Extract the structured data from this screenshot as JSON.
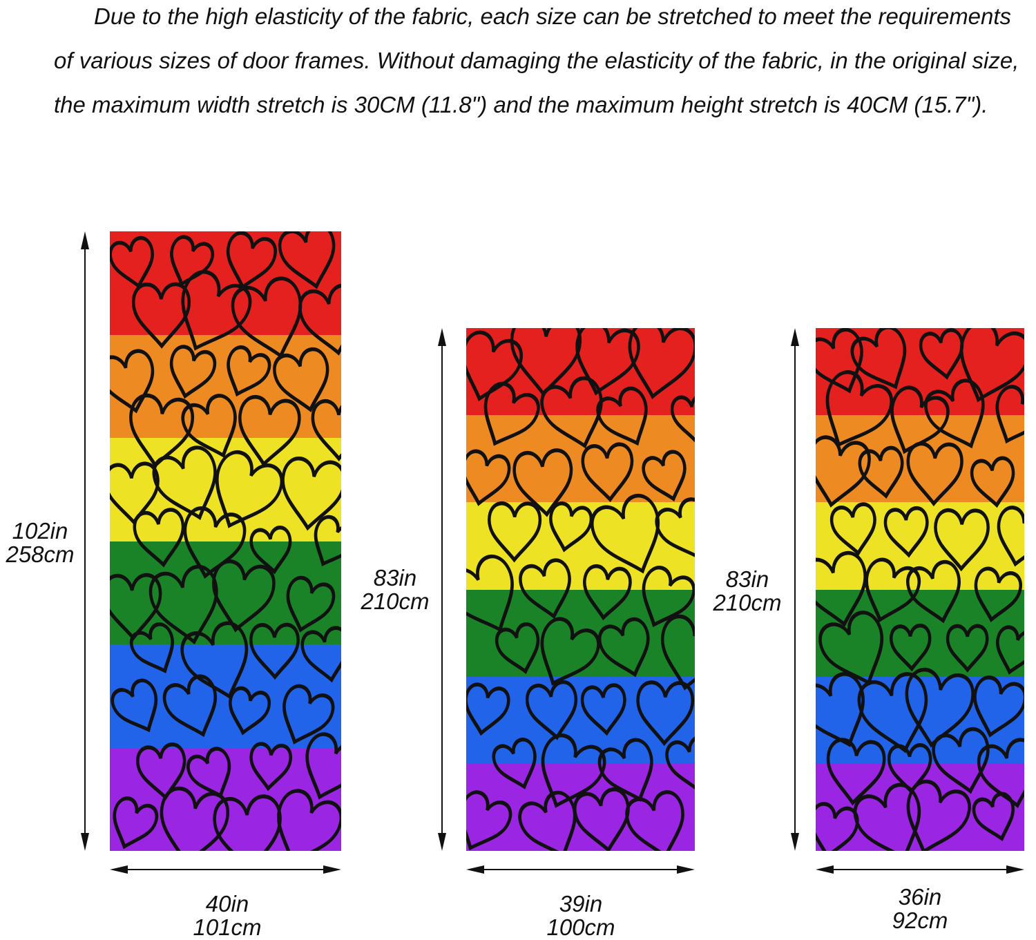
{
  "description_text": "Due to the high elasticity of the fabric, each size can be stretched to meet the requirements of various sizes of door frames. Without damaging the elasticity of the fabric, in the original size, the maximum width stretch is 30CM (11.8\") and the maximum height stretch is 40CM (15.7\").",
  "stripe_colors": [
    "#e4211f",
    "#ee8a22",
    "#ede223",
    "#1b8327",
    "#2164ea",
    "#9a25e2"
  ],
  "heart_color": "#111111",
  "doors": [
    {
      "height_in": "102in",
      "height_cm": "258cm",
      "width_in": "40in",
      "width_cm": "101cm"
    },
    {
      "height_in": "83in",
      "height_cm": "210cm",
      "width_in": "39in",
      "width_cm": "100cm"
    },
    {
      "height_in": "83in",
      "height_cm": "210cm",
      "width_in": "36in",
      "width_cm": "92cm"
    }
  ]
}
